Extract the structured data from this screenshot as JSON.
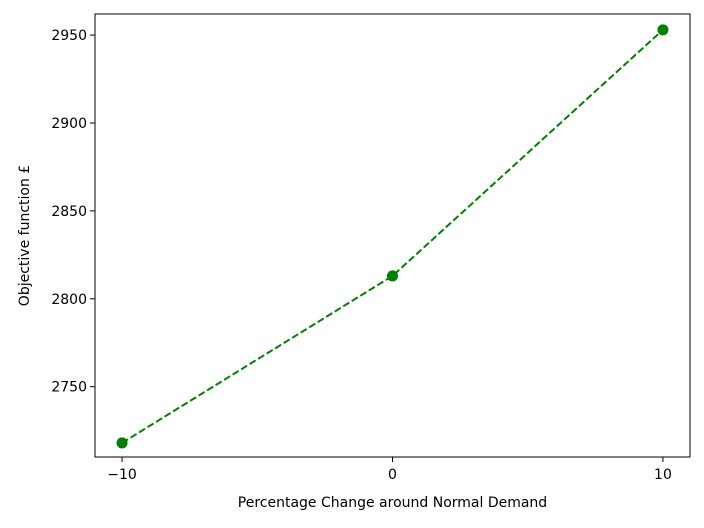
{
  "chart_data": {
    "type": "line",
    "title": "",
    "xlabel": "Percentage Change around Normal Demand",
    "ylabel": "Objective function £",
    "x": [
      -10,
      0,
      10
    ],
    "series": [
      {
        "values": [
          2718,
          2813,
          2953
        ],
        "color": "#008000",
        "line_style": "dashed",
        "marker": "circle"
      }
    ],
    "xlim": [
      -11,
      11
    ],
    "ylim": [
      2710,
      2962
    ],
    "xticks": [
      -10,
      0,
      10
    ],
    "xtick_labels": [
      "−10",
      "0",
      "10"
    ],
    "yticks": [
      2750,
      2800,
      2850,
      2900,
      2950
    ],
    "ytick_labels": [
      "2750",
      "2800",
      "2850",
      "2900",
      "2950"
    ],
    "grid": false,
    "legend": "none"
  }
}
